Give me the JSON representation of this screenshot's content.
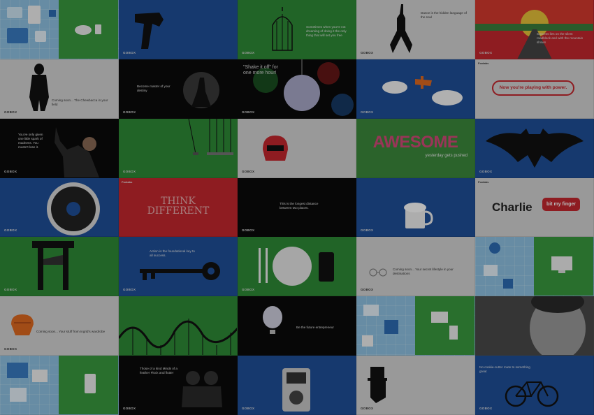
{
  "brand": "GOBOX",
  "footer_tag": "Foxtabs",
  "tiles": {
    "r1c3": "Sometimes when you're not dreaming of doing it the only thing that will set you free",
    "r1c4_quote": "Dance is the hidden language of the soul",
    "r1c5_quote": "Success lies on the silent roadblock and with the mountain shown",
    "r2c1": "Coming soon... The Chewbacca in your field",
    "r2c2": "Become master of your destiny",
    "r2c3": "\"Shake it off\" for one more hour!",
    "r2c5": "Now you're playing with power.",
    "r3c1": "You've only given one little spark of madness. You mustn't lose it.",
    "r3c4_title": "AWESOME",
    "r3c4_sub": "yesterday gets pushed",
    "r4c2_title": "THINK DIFFERENT",
    "r4c3": "This is the longest distance between two places.",
    "r4c5_title": "Charlie",
    "r4c5_sub": "bit my finger",
    "r5c2": "Action is the foundational key to all success.",
    "r5c4": "Coming soon... Your secret lifestyle in your destinations",
    "r6c1": "Coming soon... Your stuff from Ingrid's wardrobe",
    "r6c3": "Be the future entrepreneur",
    "r7c2": "Those of a kind Minds of a feather Flock and flutter",
    "r7c5": "No cookie-cutter route to something great"
  },
  "colors": {
    "blue": "#1f4f99",
    "green": "#2e8b36",
    "gray": "#d5d5d5",
    "black": "#0b0b0b",
    "red": "#c5282f",
    "light_blue": "#8fc3e3"
  }
}
